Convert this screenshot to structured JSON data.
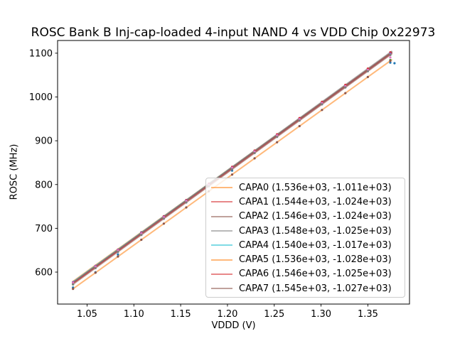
{
  "chart_data": {
    "type": "line",
    "title": "ROSC Bank B Inj-cap-loaded 4-input NAND 4 vs VDD Chip 0x22973",
    "xlabel": "VDDD (V)",
    "ylabel": "ROSC (MHz)",
    "xlim": [
      1.0185,
      1.3945
    ],
    "ylim": [
      527,
      1129
    ],
    "xtick_values": [
      1.05,
      1.1,
      1.15,
      1.2,
      1.25,
      1.3,
      1.35
    ],
    "xtick_labels": [
      "1.05",
      "1.10",
      "1.15",
      "1.20",
      "1.25",
      "1.30",
      "1.35"
    ],
    "ytick_values": [
      600,
      700,
      800,
      900,
      1000,
      1100
    ],
    "ytick_labels": [
      "600",
      "700",
      "800",
      "900",
      "1000",
      "1100"
    ],
    "grid": false,
    "legend_position": "lower right",
    "fit_x_range": [
      1.035,
      1.376
    ],
    "scatter_x": [
      1.035,
      1.059,
      1.083,
      1.108,
      1.132,
      1.156,
      1.18,
      1.205,
      1.229,
      1.253,
      1.277,
      1.301,
      1.326,
      1.35,
      1.374
    ],
    "series": [
      {
        "name": "CAPA0",
        "legend_label": "CAPA0 (1.536e+03, -1.011e+03)",
        "slope": 1536.0,
        "intercept": -1011.0,
        "line_color": "rgba(255,127,14,0.55)",
        "marker_color": "#1f77b4",
        "deviations": {
          "0": -14,
          "1": -16,
          "2": -12,
          "7": -8,
          "14": -21
        },
        "extra_points": [
          [
            1.3785,
            1077
          ]
        ]
      },
      {
        "name": "CAPA1",
        "legend_label": "CAPA1 (1.544e+03, -1.024e+03)",
        "slope": 1544.0,
        "intercept": -1024.0,
        "line_color": "rgba(214,39,40,0.55)",
        "marker_color": "#ff7f0e",
        "deviations": {}
      },
      {
        "name": "CAPA2",
        "legend_label": "CAPA2 (1.546e+03, -1.024e+03)",
        "slope": 1546.0,
        "intercept": -1024.0,
        "line_color": "rgba(140,86,75,0.55)",
        "marker_color": "#2ca02c",
        "deviations": {
          "0": -4,
          "14": -16
        }
      },
      {
        "name": "CAPA3",
        "legend_label": "CAPA3 (1.548e+03, -1.025e+03)",
        "slope": 1548.0,
        "intercept": -1025.0,
        "line_color": "rgba(127,127,127,0.55)",
        "marker_color": "#d62728",
        "deviations": {}
      },
      {
        "name": "CAPA4",
        "legend_label": "CAPA4 (1.540e+03, -1.017e+03)",
        "slope": 1540.0,
        "intercept": -1017.0,
        "line_color": "rgba(23,190,207,0.55)",
        "marker_color": "#9467bd",
        "deviations": {}
      },
      {
        "name": "CAPA5",
        "legend_label": "CAPA5 (1.536e+03, -1.028e+03)",
        "slope": 1536.0,
        "intercept": -1028.0,
        "line_color": "rgba(255,127,14,0.55)",
        "marker_color": "#8c564b",
        "deviations": {}
      },
      {
        "name": "CAPA6",
        "legend_label": "CAPA6 (1.546e+03, -1.025e+03)",
        "slope": 1546.0,
        "intercept": -1025.0,
        "line_color": "rgba(214,39,40,0.55)",
        "marker_color": "#e377c2",
        "deviations": {
          "14": -9
        }
      },
      {
        "name": "CAPA7",
        "legend_label": "CAPA7 (1.545e+03, -1.027e+03)",
        "slope": 1545.0,
        "intercept": -1027.0,
        "line_color": "rgba(140,86,75,0.55)",
        "marker_color": "#7f7f7f",
        "deviations": {}
      }
    ],
    "colors": {
      "spine": "#000000",
      "tick": "#000000",
      "text": "#000000",
      "legend_border": "#cccccc",
      "background": "#ffffff"
    }
  }
}
